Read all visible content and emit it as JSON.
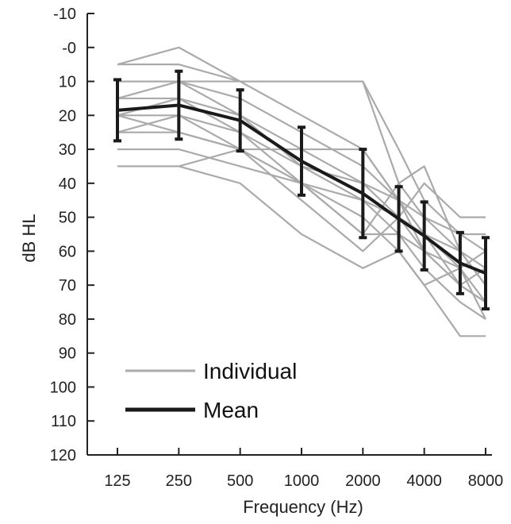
{
  "chart_data": {
    "type": "line",
    "xlabel": "Frequency (Hz)",
    "ylabel": "dB HL",
    "x_categories": [
      "125",
      "250",
      "500",
      "1000",
      "2000",
      "4000",
      "8000"
    ],
    "x_positions": [
      125,
      250,
      500,
      1000,
      2000,
      3000,
      4000,
      6000,
      8000
    ],
    "y_ticks": [
      "-10",
      "-0",
      "10",
      "20",
      "30",
      "40",
      "50",
      "60",
      "70",
      "80",
      "90",
      "100",
      "110",
      "120"
    ],
    "y_tick_values": [
      -10,
      0,
      10,
      20,
      30,
      40,
      50,
      60,
      70,
      80,
      90,
      100,
      110,
      120
    ],
    "ylim": [
      -10,
      120
    ],
    "y_inverted": true,
    "grid": false,
    "legend": {
      "placement": "bottom-left",
      "entries": [
        {
          "name": "Individual",
          "color": "#aaaaaa"
        },
        {
          "name": "Mean",
          "color": "#1a1a1a"
        }
      ]
    },
    "series": [
      {
        "name": "Mean",
        "color": "#1a1a1a",
        "x": [
          125,
          250,
          500,
          1000,
          2000,
          3000,
          4000,
          6000,
          8000
        ],
        "values": [
          18.5,
          17,
          21.5,
          33.5,
          43,
          50.5,
          55.5,
          63.5,
          66.5
        ],
        "error": [
          9,
          10,
          9,
          10,
          13,
          9.5,
          10,
          9,
          10.5
        ]
      }
    ],
    "individual": {
      "name": "Individual",
      "color": "#aaaaaa",
      "x": [
        125,
        250,
        500,
        1000,
        2000,
        3000,
        4000,
        6000,
        8000
      ],
      "lines": [
        [
          5,
          0,
          10,
          20,
          30,
          45,
          60,
          70,
          75
        ],
        [
          5,
          5,
          10,
          10,
          10,
          30,
          45,
          55,
          60
        ],
        [
          10,
          10,
          10,
          10,
          10,
          40,
          50,
          60,
          70
        ],
        [
          10,
          10,
          15,
          25,
          35,
          45,
          55,
          65,
          75
        ],
        [
          15,
          10,
          20,
          30,
          40,
          50,
          55,
          60,
          70
        ],
        [
          15,
          15,
          20,
          35,
          45,
          50,
          60,
          65,
          80
        ],
        [
          20,
          20,
          25,
          35,
          40,
          45,
          50,
          55,
          55
        ],
        [
          20,
          15,
          25,
          40,
          45,
          55,
          60,
          70,
          75
        ],
        [
          25,
          25,
          30,
          45,
          60,
          50,
          40,
          50,
          50
        ],
        [
          25,
          20,
          30,
          40,
          55,
          40,
          35,
          60,
          65
        ],
        [
          30,
          30,
          35,
          40,
          55,
          55,
          65,
          75,
          80
        ],
        [
          35,
          35,
          40,
          55,
          65,
          60,
          70,
          85,
          85
        ],
        [
          20,
          25,
          30,
          40,
          50,
          60,
          70,
          65,
          60
        ],
        [
          35,
          35,
          30,
          30,
          30,
          45,
          55,
          70,
          65
        ]
      ]
    }
  }
}
